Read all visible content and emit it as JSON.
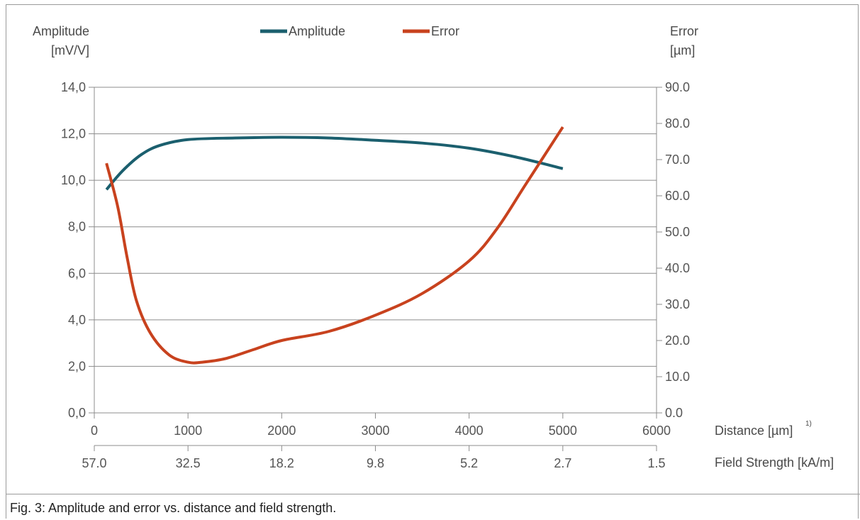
{
  "caption": "Fig. 3: Amplitude and error vs. distance and field strength.",
  "chart_data": {
    "type": "line",
    "left_axis": {
      "label_line1": "Amplitude",
      "label_line2": "[mV/V]",
      "ylim": [
        0,
        14
      ],
      "ticks": [
        "0,0",
        "2,0",
        "4,0",
        "6,0",
        "8,0",
        "10,0",
        "12,0",
        "14,0"
      ]
    },
    "right_axis": {
      "label_line1": "Error",
      "label_line2": "[µm]",
      "ylim": [
        0,
        90
      ],
      "ticks": [
        "0.0",
        "10.0",
        "20.0",
        "30.0",
        "40.0",
        "50.0",
        "60.0",
        "70.0",
        "80.0",
        "90.0"
      ]
    },
    "x_axis": {
      "label": "Distance [µm]",
      "superscript": "1)",
      "xlim": [
        0,
        6000
      ],
      "ticks": [
        "0",
        "1000",
        "2000",
        "3000",
        "4000",
        "5000",
        "6000"
      ]
    },
    "x2_axis": {
      "label": "Field Strength [kA/m]",
      "ticks": [
        "57.0",
        "32.5",
        "18.2",
        "9.8",
        "5.2",
        "2.7",
        "1.5"
      ]
    },
    "grid": true,
    "legend_position": "top-center",
    "series": [
      {
        "name": "Amplitude",
        "axis": "left",
        "color": "#1b5f6e",
        "x": [
          130,
          300,
          500,
          700,
          1000,
          1500,
          2000,
          2500,
          3000,
          3500,
          4000,
          4500,
          5000
        ],
        "y": [
          9.6,
          10.4,
          11.1,
          11.5,
          11.75,
          11.82,
          11.85,
          11.82,
          11.72,
          11.6,
          11.38,
          11.0,
          10.5
        ]
      },
      {
        "name": "Error",
        "axis": "right",
        "color": "#c8421e",
        "x": [
          130,
          250,
          350,
          450,
          600,
          800,
          1000,
          1150,
          1400,
          1700,
          2000,
          2500,
          3000,
          3500,
          4000,
          4300,
          4600,
          5000
        ],
        "y": [
          69,
          57,
          43,
          31,
          22,
          16,
          14,
          14,
          15,
          17.5,
          20,
          22.5,
          27,
          33,
          42,
          51,
          63,
          79
        ]
      }
    ]
  }
}
